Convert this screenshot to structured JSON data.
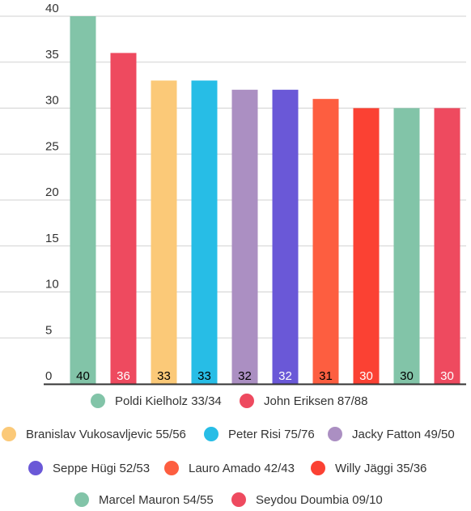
{
  "chart_data": {
    "type": "bar",
    "categories": [
      "Poldi Kielholz 33/34",
      "John Eriksen 87/88",
      "Branislav Vukosavljevic 55/56",
      "Peter Risi 75/76",
      "Jacky Fatton 49/50",
      "Seppe Hügi 52/53",
      "Lauro Amado 42/43",
      "Willy Jäggi 35/36",
      "Marcel Mauron 54/55",
      "Seydou Doumbia 09/10"
    ],
    "values": [
      40,
      36,
      33,
      33,
      32,
      32,
      31,
      30,
      30,
      30
    ],
    "value_labels": [
      "40",
      "36",
      "33",
      "33",
      "32",
      "32",
      "31",
      "30",
      "30",
      "30"
    ],
    "colors": [
      "#82c4a8",
      "#ee4a5f",
      "#fbc978",
      "#27bde6",
      "#ab8fc2",
      "#6a58d7",
      "#fd5e40",
      "#fb4133",
      "#82c4a8",
      "#ee4a5f"
    ],
    "label_colors": [
      "#000000",
      "#ffffff",
      "#000000",
      "#000000",
      "#000000",
      "#ffffff",
      "#000000",
      "#ffffff",
      "#000000",
      "#ffffff"
    ],
    "yticks": [
      "0",
      "5",
      "10",
      "15",
      "20",
      "25",
      "30",
      "35",
      "40"
    ],
    "ylim": [
      0,
      40
    ],
    "grid": true,
    "legend_position": "bottom"
  }
}
